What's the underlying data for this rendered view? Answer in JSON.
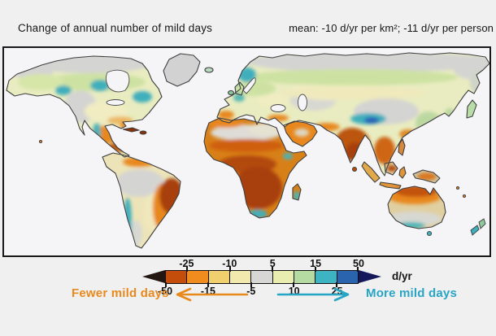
{
  "figure": {
    "title": "Change of annual number of mild days",
    "mean_label": "mean: -10 d/yr per km²; -11 d/yr per person"
  },
  "colorbar": {
    "unit": "d/yr",
    "boundaries": [
      -50,
      -25,
      -15,
      -10,
      -5,
      5,
      10,
      15,
      25,
      50
    ],
    "top_labels": [
      "-25",
      "-10",
      "5",
      "15",
      "50"
    ],
    "bottom_labels": [
      "-50",
      "-15",
      "-5",
      "10",
      "25"
    ],
    "segment_colors": [
      "#c44d0c",
      "#ef8c1d",
      "#f0cf6e",
      "#f2e9ae",
      "#d7d7d5",
      "#e9edb0",
      "#b5dba2",
      "#3eb3c1",
      "#2a63ae"
    ],
    "left_tip_color": "#221611",
    "right_tip_color": "#14175a"
  },
  "legend": {
    "fewer_label": "Fewer mild days",
    "fewer_color": "#e8891d",
    "more_label": "More mild days",
    "more_color": "#27a5c5"
  },
  "map_data": {
    "type": "choropleth-world-map",
    "variable": "Change of annual number of mild days (d/yr)",
    "scale_range": [
      -50,
      50
    ],
    "regions": [
      {
        "region": "Africa (Sahel, central & southern)",
        "trend": "-25 to -50 d/yr"
      },
      {
        "region": "Arabia, Iran, India, Southeast Asia",
        "trend": "-15 to -50 d/yr"
      },
      {
        "region": "Eastern Brazil, Caribbean, Mexico",
        "trend": "-15 to -50 d/yr"
      },
      {
        "region": "Northern Australia",
        "trend": "-10 to -25 d/yr"
      },
      {
        "region": "Central US, central Asia, Europe south",
        "trend": "-5 to -15 d/yr"
      },
      {
        "region": "Canada, northern Europe, mid-Siberia",
        "trend": "+5 to +15 d/yr"
      },
      {
        "region": "UK, Scandinavia, Tibet, Chile, South Africa tip, New Zealand",
        "trend": "+15 to +50 d/yr"
      },
      {
        "region": "Sahara interior, Greenland, Arctic, Patagonia, south Australia",
        "trend": "-5 to +5 d/yr"
      }
    ]
  }
}
